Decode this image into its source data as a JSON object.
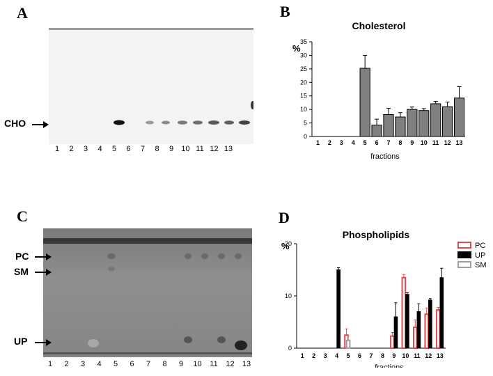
{
  "panels": {
    "A": {
      "letter": "A",
      "band_label": "CHO",
      "lanes": [
        "1",
        "2",
        "3",
        "4",
        "5",
        "6",
        "7",
        "8",
        "9",
        "10",
        "11",
        "12",
        "13"
      ]
    },
    "B": {
      "letter": "B"
    },
    "C": {
      "letter": "C",
      "band_labels": {
        "pc": "PC",
        "sm": "SM",
        "up": "UP"
      },
      "lanes": [
        "1",
        "2",
        "3",
        "4",
        "5",
        "6",
        "7",
        "8",
        "9",
        "10",
        "11",
        "12",
        "13"
      ]
    },
    "D": {
      "letter": "D"
    }
  },
  "chart_data": [
    {
      "type": "bar",
      "title": "Cholesterol",
      "xlabel": "fractions",
      "ylabel": "%",
      "ylim": [
        0,
        35
      ],
      "yticks": [
        0,
        5,
        10,
        15,
        20,
        25,
        30,
        35
      ],
      "categories": [
        "1",
        "2",
        "3",
        "4",
        "5",
        "6",
        "7",
        "8",
        "9",
        "10",
        "11",
        "12",
        "13"
      ],
      "series": [
        {
          "values": [
            0,
            0,
            0,
            0,
            25.2,
            4.2,
            8.1,
            7.2,
            10.0,
            9.6,
            12.1,
            11.0,
            14.2
          ],
          "errors": [
            0,
            0,
            0,
            0,
            4.8,
            2.2,
            2.3,
            1.6,
            0.9,
            0.7,
            0.9,
            1.7,
            4.2
          ],
          "color": "#808080"
        }
      ]
    },
    {
      "type": "bar",
      "title": "Phospholipids",
      "xlabel": "fractions",
      "ylabel": "%",
      "ylim": [
        0,
        20
      ],
      "yticks": [
        0,
        10,
        20
      ],
      "legend": "right",
      "categories": [
        "1",
        "2",
        "3",
        "4",
        "5",
        "6",
        "7",
        "8",
        "9",
        "10",
        "11",
        "12",
        "13"
      ],
      "series": [
        {
          "name": "PC",
          "color": "#e8474c",
          "values": [
            0,
            0,
            0,
            0,
            2.5,
            0,
            0,
            0,
            2.3,
            13.5,
            4.0,
            6.5,
            7.3
          ],
          "errors": [
            0,
            0,
            0,
            0,
            1.2,
            0,
            0,
            0,
            0.7,
            0.6,
            1.4,
            1.2,
            0.5
          ]
        },
        {
          "name": "UP",
          "color": "#000000",
          "values": [
            0,
            0,
            0,
            15.0,
            0,
            0,
            0,
            0,
            6.0,
            10.3,
            7.0,
            9.2,
            13.5
          ],
          "errors": [
            0,
            0,
            0,
            0.4,
            0,
            0,
            0,
            0,
            2.7,
            0.3,
            1.5,
            0.3,
            1.8
          ]
        },
        {
          "name": "SM",
          "color": "#a0a0a0",
          "values": [
            0,
            0,
            0,
            0,
            1.5,
            0,
            0,
            0,
            0,
            0,
            0,
            0,
            0
          ],
          "errors": [
            0,
            0,
            0,
            0,
            0.8,
            0,
            0,
            0,
            0,
            0,
            0,
            0,
            0
          ]
        }
      ]
    }
  ]
}
